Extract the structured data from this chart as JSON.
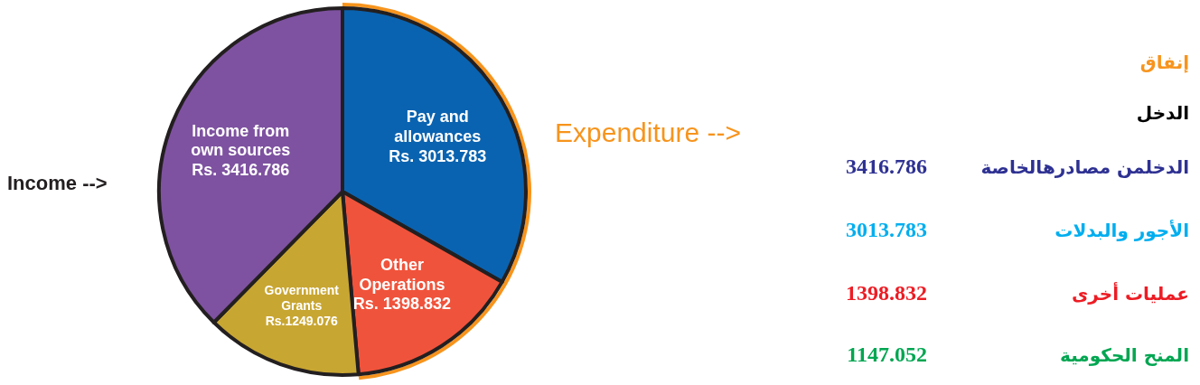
{
  "chart_data": {
    "type": "pie",
    "categories": [
      "Pay and allowances",
      "Other Operations",
      "Government Grants",
      "Income from own sources"
    ],
    "values": [
      3013.783,
      1398.832,
      1249.076,
      3416.786
    ],
    "colors": [
      "#0a63b0",
      "#f0533b",
      "#c8a632",
      "#7e52a0"
    ],
    "value_labels": [
      "Rs. 3013.783",
      "Rs. 1398.832",
      "Rs.1249.076",
      "Rs. 3416.786"
    ],
    "annotations": [
      "Income -->",
      "Expenditure -->",
      "إنفاق",
      "الدخل",
      "الدخلمن مصادرهالخاصة",
      "3416.786",
      "الأجور والبدلات",
      "3013.783",
      "عمليات أخرى",
      "1398.832",
      "المنح الحكومية",
      "1147.052"
    ]
  }
}
